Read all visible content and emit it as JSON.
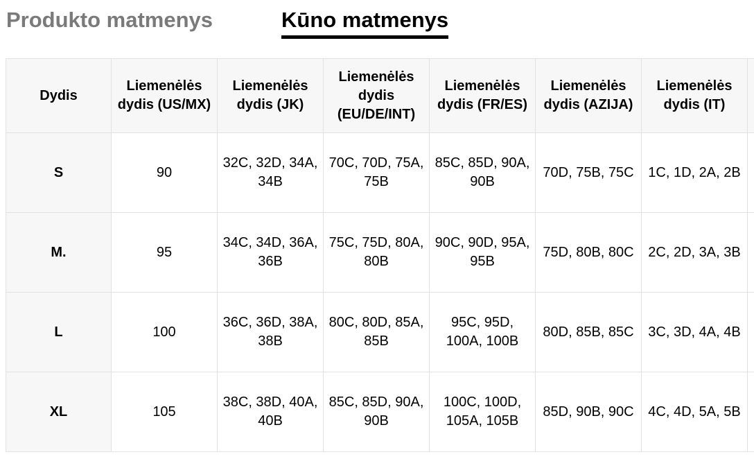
{
  "tabs": {
    "product": "Produkto matmenys",
    "body": "Kūno matmenys"
  },
  "table": {
    "headers": [
      "Dydis",
      "Liemenėlės dydis (US/MX)",
      "Liemenėlės dydis (JK)",
      "Liemenėlės dydis (EU/DE/INT)",
      "Liemenėlės dydis (FR/ES)",
      "Liemenėlės dydis (AZIJA)",
      "Liemenėlės dydis (IT)",
      ""
    ],
    "rows": [
      [
        "S",
        "90",
        "32C, 32D, 34A, 34B",
        "70C, 70D, 75A, 75B",
        "85C, 85D, 90A, 90B",
        "70D, 75B, 75C",
        "1C, 1D, 2A, 2B",
        ""
      ],
      [
        "M.",
        "95",
        "34C, 34D, 36A, 36B",
        "75C, 75D, 80A, 80B",
        "90C, 90D, 95A, 95B",
        "75D, 80B, 80C",
        "2C, 2D, 3A, 3B",
        ""
      ],
      [
        "L",
        "100",
        "36C, 36D, 38A, 38B",
        "80C, 80D, 85A, 85B",
        "95C, 95D, 100A, 100B",
        "80D, 85B, 85C",
        "3C, 3D, 4A, 4B",
        ""
      ],
      [
        "XL",
        "105",
        "38C, 38D, 40A, 40B",
        "85C, 85D, 90A, 90B",
        "100C, 100D, 105A, 105B",
        "85D, 90B, 90C",
        "4C, 4D, 5A, 5B",
        ""
      ]
    ]
  }
}
